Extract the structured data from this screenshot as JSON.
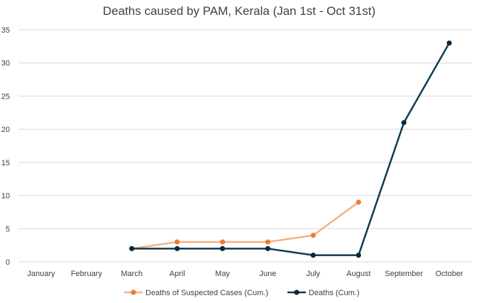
{
  "chart_data": {
    "type": "line",
    "title": "Deaths caused by PAM, Kerala (Jan 1st  - Oct 31st)",
    "xlabel": "",
    "ylabel": "",
    "categories": [
      "January",
      "February",
      "March",
      "April",
      "May",
      "June",
      "July",
      "August",
      "September",
      "October"
    ],
    "ylim": [
      0,
      35
    ],
    "yticks": [
      0,
      5,
      10,
      15,
      20,
      25,
      30,
      35
    ],
    "grid": true,
    "legend_position": "bottom",
    "series": [
      {
        "name": "Deaths of Suspected Cases (Cum.)",
        "color": "#F4B183",
        "marker_color": "#ED7D31",
        "values": [
          null,
          null,
          2,
          3,
          3,
          3,
          4,
          9,
          null,
          null
        ]
      },
      {
        "name": "Deaths (Cum.)",
        "color": "#0E3A52",
        "marker_color": "#0B2A3C",
        "values": [
          null,
          null,
          2,
          2,
          2,
          2,
          1,
          1,
          21,
          33
        ]
      }
    ]
  }
}
